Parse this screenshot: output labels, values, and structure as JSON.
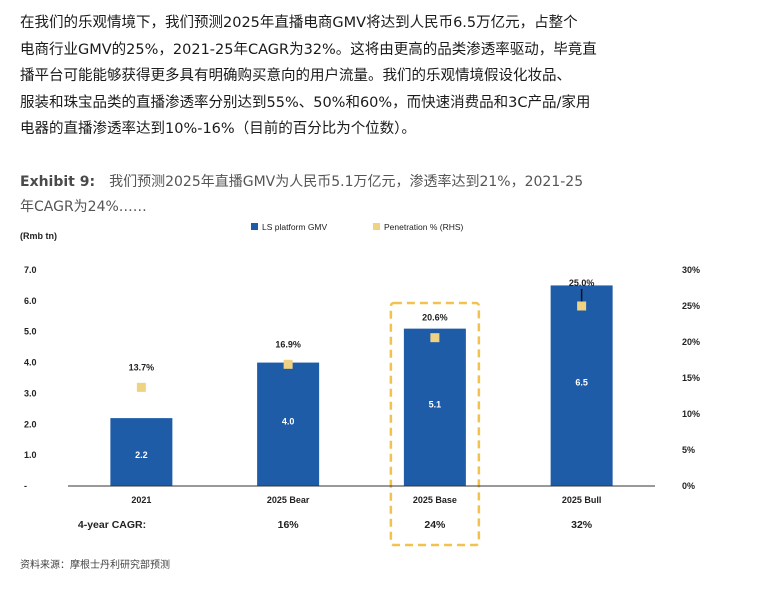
{
  "paragraph": {
    "lines": [
      "在我们的乐观情境下，我们预测2025年直播电商GMV将达到人民币6.5万亿元，占整个",
      "电商行业GMV的25%，2021-25年CAGR为32%。这将由更高的品类渗透率驱动，毕竟直",
      "播平台可能能够获得更多具有明确购买意向的用户流量。我们的乐观情境假设化妆品、",
      "服装和珠宝品类的直播渗透率分别达到55%、50%和60%，而快速消费品和3C产品/家用",
      "电器的直播渗透率达到10%-16%（目前的百分比为个位数）。"
    ]
  },
  "exhibit": {
    "label": "Exhibit 9:",
    "title_line1": "我们预测2025年直播GMV为人民币5.1万亿元，渗透率达到21%，2021-25",
    "title_line2": "年CAGR为24%……"
  },
  "chart_data": {
    "type": "bar",
    "categories": [
      "2021",
      "2025 Bear",
      "2025 Base",
      "2025 Bull"
    ],
    "series": [
      {
        "name": "LS platform GMV",
        "axis": "left",
        "values": [
          2.2,
          4.0,
          5.1,
          6.5
        ],
        "labels": [
          "2.2",
          "4.0",
          "5.1",
          "6.5"
        ],
        "color": "#1f5ca8"
      },
      {
        "name": "Penetration % (RHS)",
        "axis": "right",
        "marker": "square",
        "values": [
          13.7,
          16.9,
          20.6,
          25.0
        ],
        "labels": [
          "13.7%",
          "16.9%",
          "20.6%",
          "25.0%"
        ],
        "color": "#f0d283"
      }
    ],
    "ylabel": "(Rmb tn)",
    "ylim": [
      0,
      7
    ],
    "yticks": [
      "-",
      "1.0",
      "2.0",
      "3.0",
      "4.0",
      "5.0",
      "6.0",
      "7.0"
    ],
    "y2lim": [
      0,
      30
    ],
    "y2ticks": [
      "0%",
      "5%",
      "10%",
      "15%",
      "20%",
      "25%",
      "30%"
    ],
    "cagr_label": "4-year CAGR:",
    "cagr_values": [
      "",
      "16%",
      "24%",
      "32%"
    ],
    "highlight": "2025 Base",
    "legend_placement": "top",
    "grid": false
  },
  "source": "资料来源：摩根士丹利研究部预测"
}
